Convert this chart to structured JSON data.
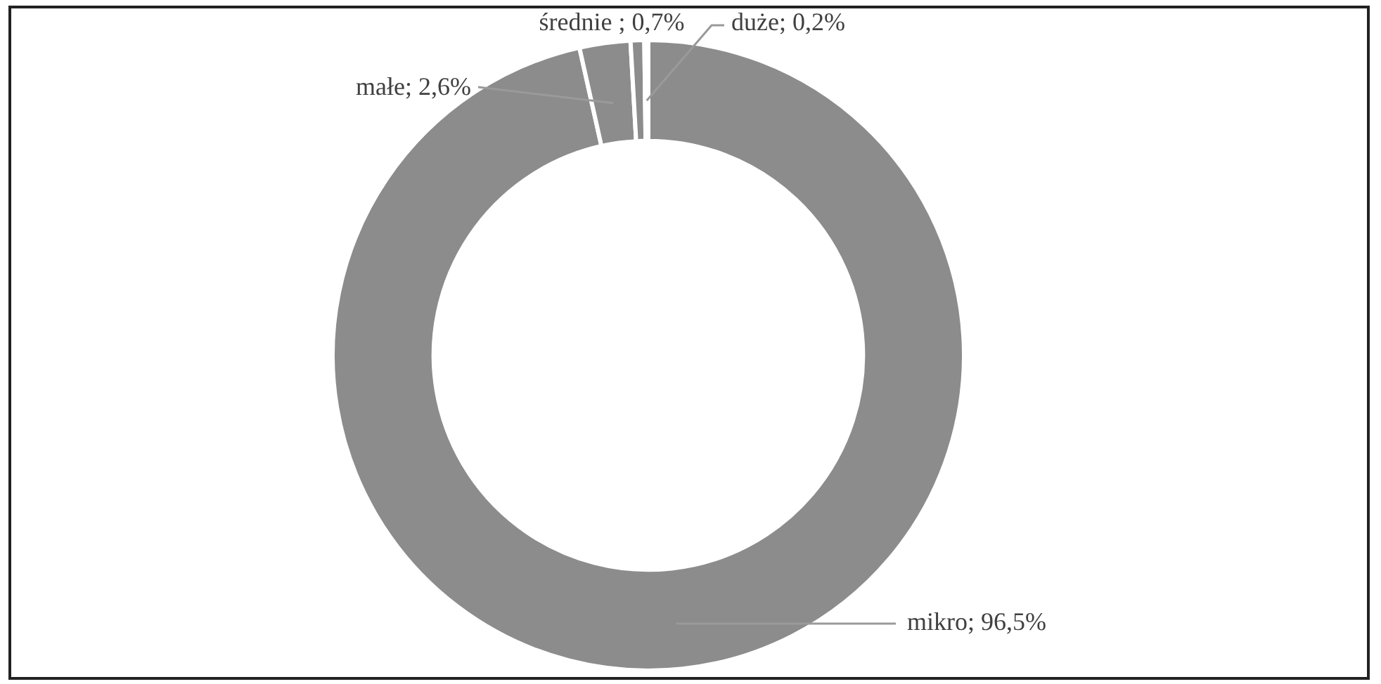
{
  "chart_data": {
    "type": "donut",
    "categories": [
      "mikro",
      "małe",
      "średnie",
      "duże"
    ],
    "values": [
      96.5,
      2.6,
      0.7,
      0.2
    ],
    "colors": [
      "#8c8c8c",
      "#8c8c8c",
      "#8c8c8c",
      "#8c8c8c"
    ],
    "value_labels": [
      "96,5%",
      "2,6%",
      "0,7%",
      "0,2%"
    ]
  }
}
